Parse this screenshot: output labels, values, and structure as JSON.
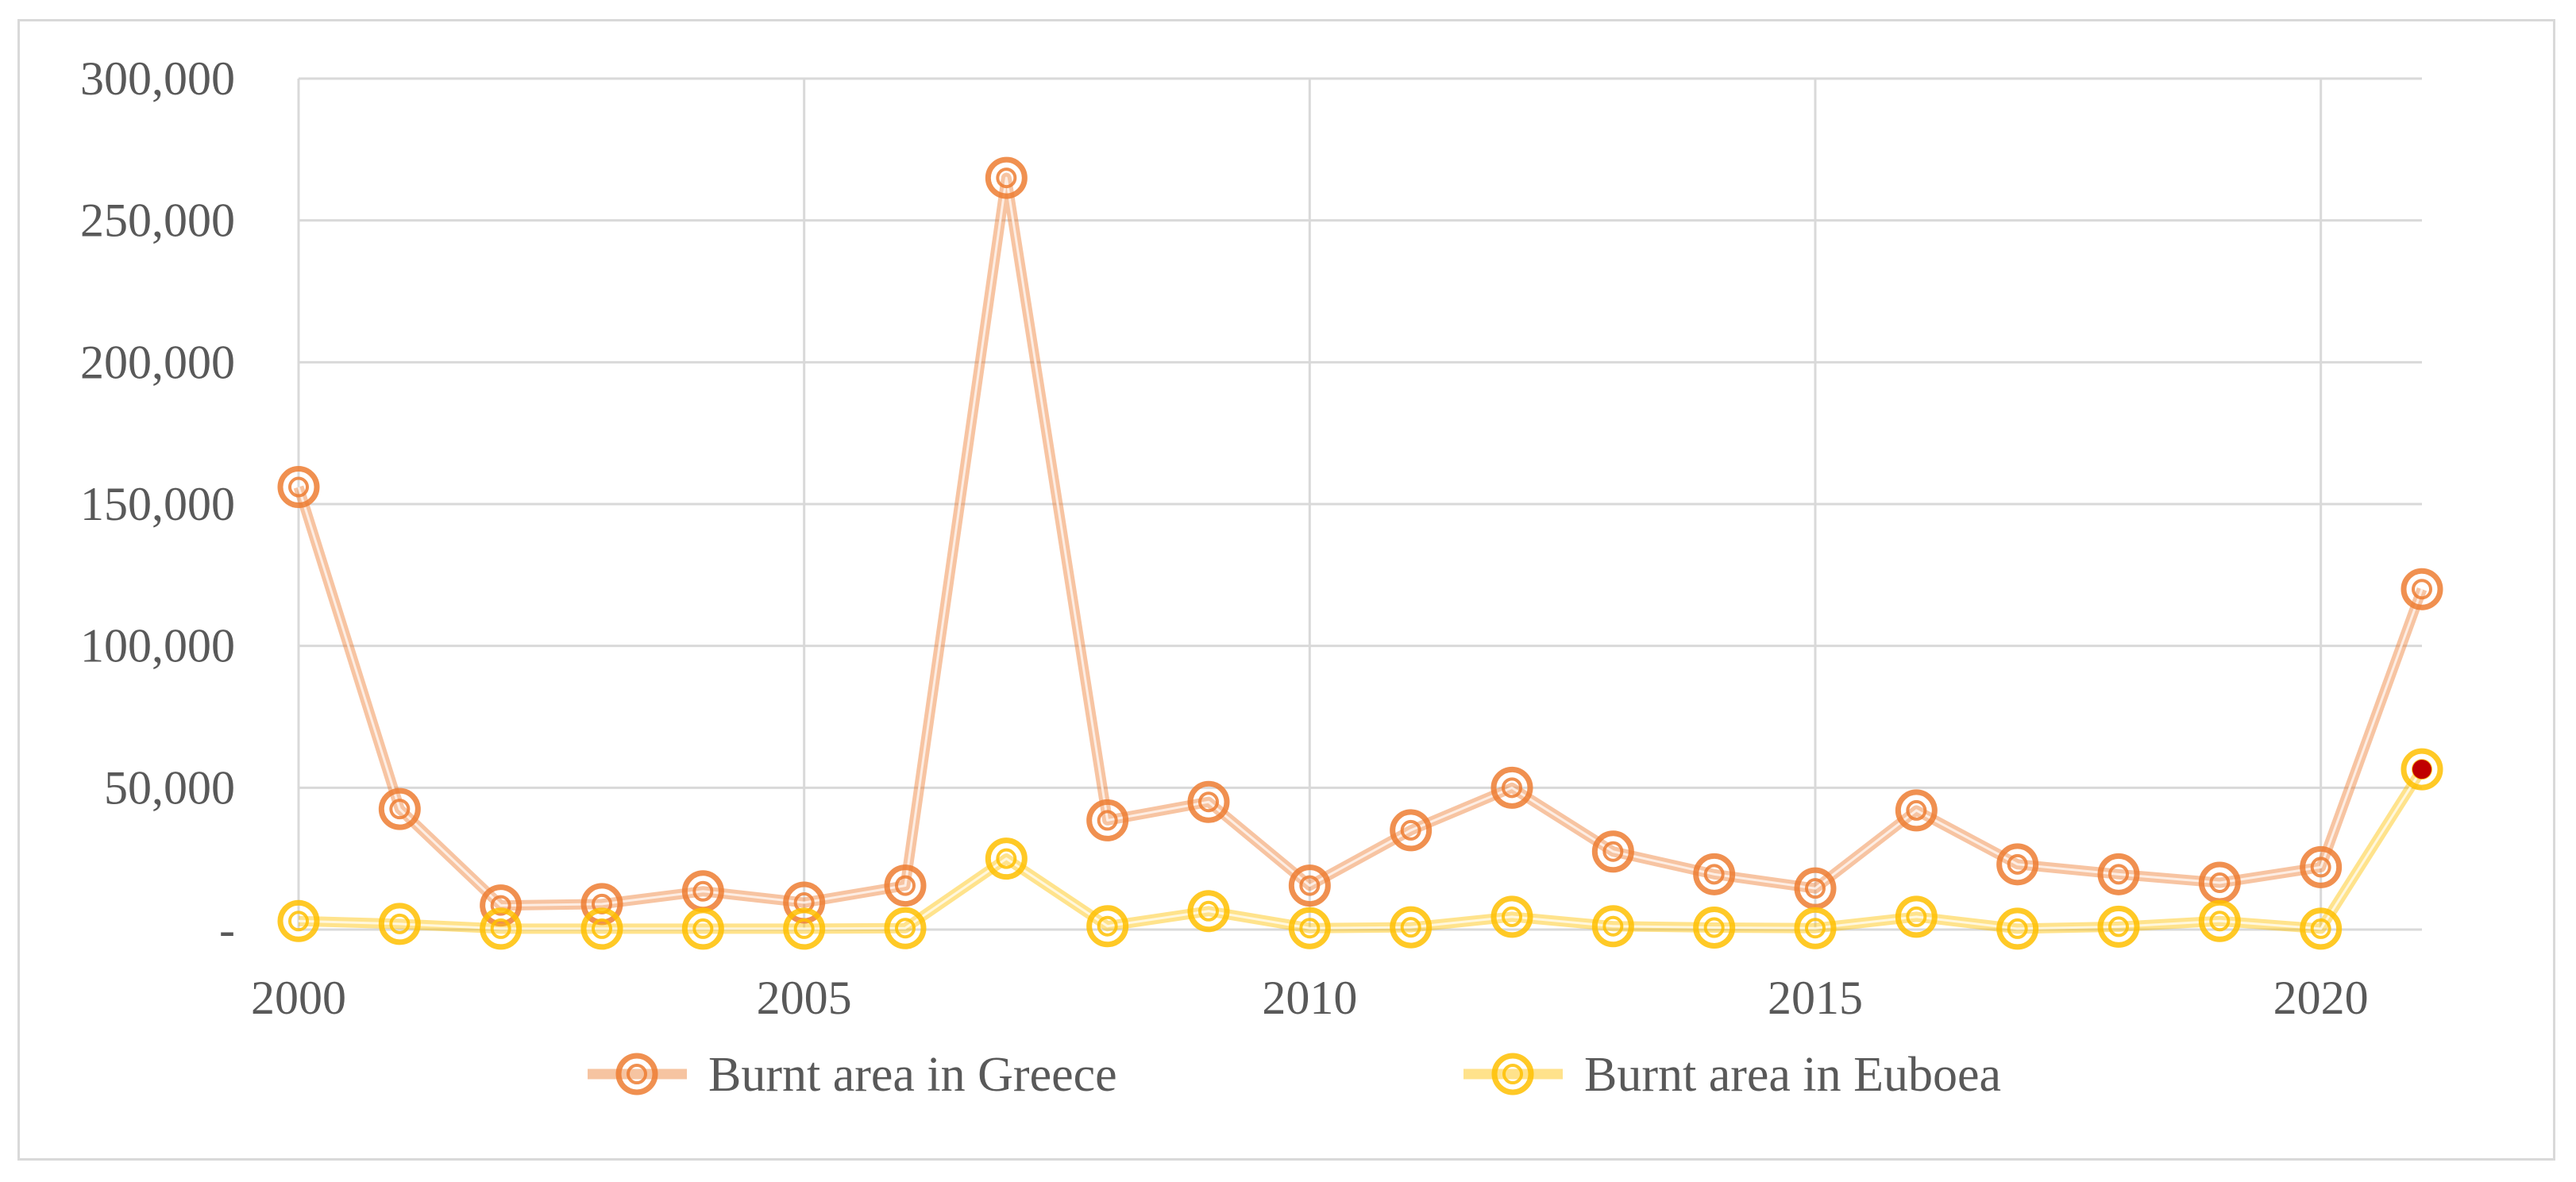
{
  "chart_data": {
    "type": "line",
    "x": [
      2000,
      2001,
      2002,
      2003,
      2004,
      2005,
      2006,
      2007,
      2008,
      2009,
      2010,
      2011,
      2012,
      2013,
      2014,
      2015,
      2016,
      2017,
      2018,
      2019,
      2020,
      2021
    ],
    "series": [
      {
        "name": "Burnt area in Greece",
        "color": "#ed7d31",
        "values": [
          156000,
          42500,
          8500,
          9000,
          13500,
          9500,
          15500,
          265000,
          38500,
          45000,
          15500,
          35000,
          50000,
          27500,
          19500,
          14500,
          42000,
          23000,
          19500,
          16500,
          22000,
          120000
        ]
      },
      {
        "name": "Burnt area in Euboea",
        "color": "#ffc000",
        "values": [
          3000,
          2000,
          300,
          300,
          300,
          300,
          500,
          25000,
          1200,
          6500,
          500,
          800,
          4500,
          1200,
          700,
          500,
          4500,
          300,
          1000,
          3000,
          300,
          56500
        ]
      }
    ],
    "ylim": [
      0,
      300000
    ],
    "yticks": [
      0,
      50000,
      100000,
      150000,
      200000,
      250000,
      300000
    ],
    "ytick_labels": [
      "-",
      "50,000",
      "100,000",
      "150,000",
      "200,000",
      "250,000",
      "300,000"
    ],
    "xticks": [
      2000,
      2005,
      2010,
      2015,
      2020
    ],
    "xtick_labels": [
      "2000",
      "2005",
      "2010",
      "2015",
      "2020"
    ],
    "grid": true,
    "legend_position": "bottom",
    "highlight_point": {
      "series": "Burnt area in Euboea",
      "x": 2021,
      "color": "#c00000"
    }
  }
}
